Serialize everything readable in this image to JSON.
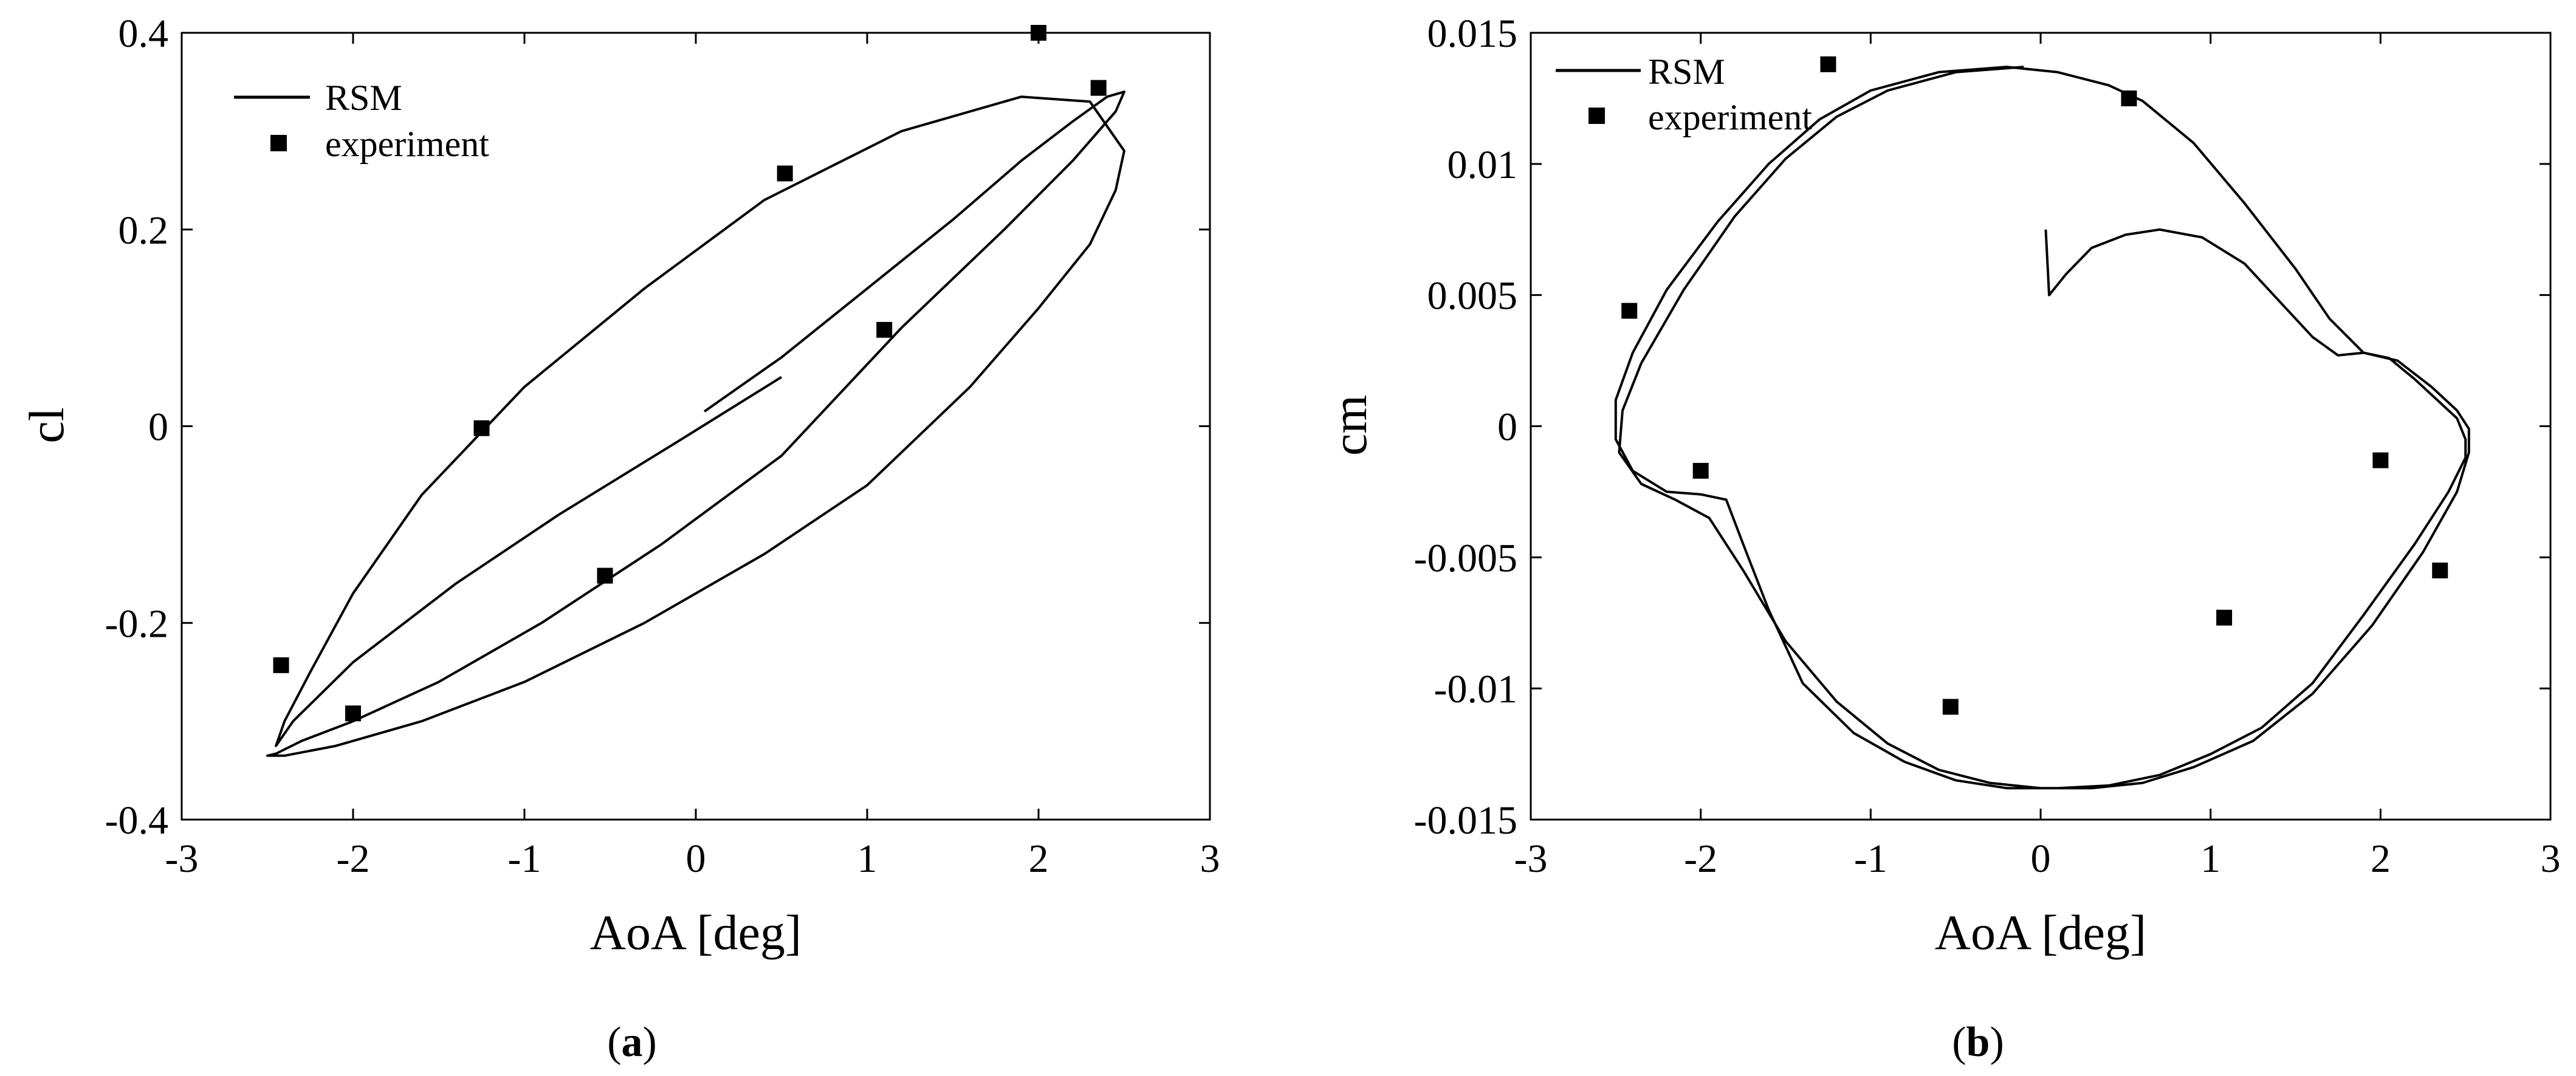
{
  "chart_data": [
    {
      "type": "line",
      "panel_label": "a",
      "xlabel": "AoA [deg]",
      "ylabel": "cl",
      "xlim": [
        -3,
        3
      ],
      "ylim": [
        -0.4,
        0.4
      ],
      "xticks": [
        -3,
        -2,
        -1,
        0,
        1,
        2,
        3
      ],
      "xtick_labels": [
        "-3",
        "-2",
        "-1",
        "0",
        "1",
        "2",
        "3"
      ],
      "yticks": [
        -0.4,
        -0.2,
        0,
        0.2,
        0.4
      ],
      "ytick_labels": [
        "-0.4",
        "-0.2",
        "0",
        "0.2",
        "0.4"
      ],
      "grid": false,
      "legend_position": "top-left",
      "series": [
        {
          "name": "RSM",
          "style": "line",
          "color": "#000000",
          "x": [
            0.05,
            0.5,
            1.0,
            1.5,
            1.9,
            2.2,
            2.4,
            2.5,
            2.45,
            2.2,
            1.8,
            1.2,
            0.5,
            -0.2,
            -0.9,
            -1.5,
            -2.0,
            -2.3,
            -2.45,
            -2.5,
            -2.4,
            -2.1,
            -1.6,
            -1.0,
            -0.3,
            0.4,
            1.0,
            1.6,
            2.0,
            2.3,
            2.45,
            2.5,
            2.3,
            1.9,
            1.2,
            0.4,
            -0.3,
            -1.0,
            -1.6,
            -2.0,
            -2.25,
            -2.4,
            -2.45,
            -2.35,
            -2.0,
            -1.4,
            -0.8,
            -0.1,
            0.5
          ],
          "y": [
            0.015,
            0.07,
            0.14,
            0.21,
            0.27,
            0.31,
            0.335,
            0.34,
            0.32,
            0.27,
            0.2,
            0.1,
            -0.03,
            -0.12,
            -0.2,
            -0.26,
            -0.3,
            -0.32,
            -0.333,
            -0.335,
            -0.335,
            -0.325,
            -0.3,
            -0.26,
            -0.2,
            -0.13,
            -0.06,
            0.04,
            0.12,
            0.185,
            0.24,
            0.28,
            0.33,
            0.335,
            0.3,
            0.23,
            0.14,
            0.04,
            -0.07,
            -0.17,
            -0.25,
            -0.3,
            -0.325,
            -0.3,
            -0.24,
            -0.16,
            -0.09,
            -0.015,
            0.05
          ]
        },
        {
          "name": "experiment",
          "style": "marker",
          "marker": "square",
          "color": "#000000",
          "x": [
            -2.42,
            -2.0,
            -1.25,
            -0.53,
            0.52,
            1.1,
            2.0,
            2.35
          ],
          "y": [
            -0.243,
            -0.292,
            -0.002,
            -0.152,
            0.257,
            0.098,
            0.4,
            0.344
          ]
        }
      ]
    },
    {
      "type": "line",
      "panel_label": "b",
      "xlabel": "AoA [deg]",
      "ylabel": "cm",
      "xlim": [
        -3,
        3
      ],
      "ylim": [
        -0.015,
        0.015
      ],
      "xticks": [
        -3,
        -2,
        -1,
        0,
        1,
        2,
        3
      ],
      "xtick_labels": [
        "-3",
        "-2",
        "-1",
        "0",
        "1",
        "2",
        "3"
      ],
      "yticks": [
        -0.015,
        -0.01,
        -0.005,
        0,
        0.005,
        0.01,
        0.015
      ],
      "ytick_labels": [
        "-0.015",
        "-0.01",
        "-0.005",
        "0",
        "0.005",
        "0.01",
        "0.015"
      ],
      "grid": false,
      "legend_position": "top-left",
      "series": [
        {
          "name": "RSM",
          "style": "line",
          "color": "#000000",
          "x": [
            0.03,
            0.05,
            0.15,
            0.3,
            0.5,
            0.7,
            0.95,
            1.2,
            1.4,
            1.6,
            1.75,
            1.9,
            2.05,
            2.2,
            2.35,
            2.45,
            2.5,
            2.5,
            2.4,
            2.2,
            1.9,
            1.6,
            1.3,
            1.0,
            0.7,
            0.4,
            0.1,
            -0.2,
            -0.5,
            -0.8,
            -1.1,
            -1.4,
            -1.6,
            -1.75,
            -1.85,
            -2.0,
            -2.2,
            -2.4,
            -2.5,
            -2.5,
            -2.4,
            -2.2,
            -1.9,
            -1.6,
            -1.3,
            -1.0,
            -0.6,
            -0.2,
            0.1,
            0.4,
            0.6,
            0.9,
            1.2,
            1.5,
            1.7,
            1.9,
            2.1,
            2.3,
            2.45,
            2.52,
            2.52,
            2.45,
            2.25,
            1.95,
            1.6,
            1.25,
            0.9,
            0.6,
            0.3,
            0.0,
            -0.3,
            -0.6,
            -0.9,
            -1.2,
            -1.5,
            -1.75,
            -1.95,
            -2.15,
            -2.35,
            -2.48,
            -2.46,
            -2.35,
            -2.1,
            -1.8,
            -1.5,
            -1.2,
            -0.9,
            -0.5,
            -0.1
          ],
          "y": [
            0.0075,
            0.005,
            0.0058,
            0.0068,
            0.0073,
            0.0075,
            0.0072,
            0.0062,
            0.0048,
            0.0034,
            0.0027,
            0.0028,
            0.0026,
            0.0018,
            0.0009,
            0.0003,
            -0.0005,
            -0.0012,
            -0.0025,
            -0.0045,
            -0.0072,
            -0.0098,
            -0.0115,
            -0.0125,
            -0.0133,
            -0.0137,
            -0.0138,
            -0.0138,
            -0.0135,
            -0.0128,
            -0.0117,
            -0.0098,
            -0.007,
            -0.0045,
            -0.0028,
            -0.0026,
            -0.0025,
            -0.0017,
            -0.0005,
            0.001,
            0.0028,
            0.0052,
            0.0078,
            0.01,
            0.0117,
            0.0128,
            0.0135,
            0.0137,
            0.0135,
            0.013,
            0.0124,
            0.0108,
            0.0085,
            0.006,
            0.0041,
            0.0028,
            0.0025,
            0.0015,
            0.0006,
            -0.0001,
            -0.001,
            -0.0025,
            -0.0048,
            -0.0076,
            -0.0102,
            -0.012,
            -0.013,
            -0.0136,
            -0.0138,
            -0.0138,
            -0.0136,
            -0.0131,
            -0.0121,
            -0.0105,
            -0.0082,
            -0.0055,
            -0.0035,
            -0.0028,
            -0.0022,
            -0.001,
            0.0006,
            0.0024,
            0.0052,
            0.008,
            0.0102,
            0.0118,
            0.0128,
            0.0135,
            0.0137
          ]
        },
        {
          "name": "experiment",
          "style": "marker",
          "marker": "square",
          "color": "#000000",
          "x": [
            -2.42,
            -2.0,
            -1.25,
            -0.53,
            0.52,
            1.08,
            2.0,
            2.35
          ],
          "y": [
            0.0044,
            -0.0017,
            0.0138,
            -0.0107,
            0.0125,
            -0.0073,
            -0.0013,
            -0.0055
          ]
        }
      ]
    }
  ]
}
